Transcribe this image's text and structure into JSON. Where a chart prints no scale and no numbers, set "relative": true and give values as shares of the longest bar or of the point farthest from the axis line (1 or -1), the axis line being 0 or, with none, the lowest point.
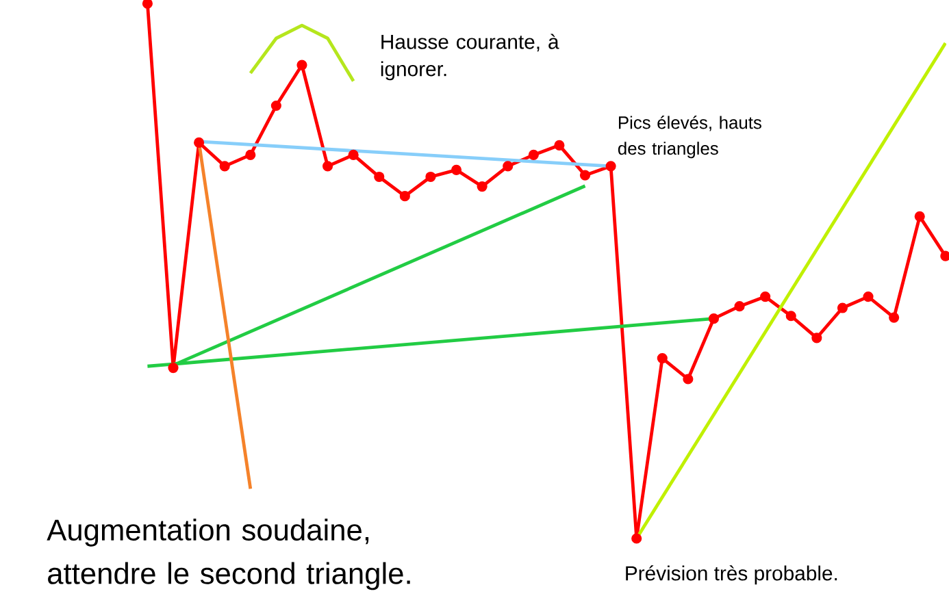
{
  "chart_data": {
    "type": "line",
    "relative": true,
    "categories": [
      null,
      null,
      null,
      null,
      null,
      null,
      null,
      null,
      null,
      null,
      null,
      null,
      null,
      null,
      null,
      null,
      null,
      null,
      null,
      null,
      null,
      null,
      null,
      null,
      null,
      null,
      null,
      null,
      null,
      null,
      null,
      null
    ],
    "series": [
      {
        "color": "#ff0000",
        "marker": "circle",
        "values": [
          1.0,
          0.319,
          0.74,
          0.696,
          0.717,
          0.809,
          0.885,
          0.696,
          0.717,
          0.676,
          0.64,
          0.676,
          0.689,
          0.658,
          0.696,
          0.717,
          0.735,
          0.679,
          0.696,
          0.0,
          0.337,
          0.298,
          0.411,
          0.434,
          0.452,
          0.416,
          0.375,
          0.431,
          0.452,
          0.413,
          0.602,
          0.528
        ]
      },
      {
        "color": "#b5e61d",
        "values": [
          null,
          null,
          null,
          null,
          0.87,
          0.935,
          0.959,
          0.935,
          0.855,
          null,
          null,
          null,
          null,
          null,
          null,
          null,
          null,
          null,
          null,
          null,
          null,
          null,
          null,
          null,
          null,
          null,
          null,
          null,
          null,
          null,
          null,
          null
        ]
      },
      {
        "color": "#87cefa",
        "values": [
          null,
          null,
          0.742,
          null,
          null,
          null,
          null,
          null,
          null,
          null,
          null,
          null,
          null,
          null,
          null,
          null,
          null,
          null,
          0.696,
          null,
          null,
          null,
          null,
          null,
          null,
          null,
          null,
          null,
          null,
          null,
          null,
          null
        ]
      },
      {
        "color": "#22cc44",
        "values": [
          null,
          0.324,
          null,
          null,
          null,
          null,
          null,
          null,
          null,
          null,
          null,
          null,
          null,
          null,
          null,
          null,
          null,
          0.659,
          null,
          null,
          null,
          null,
          null,
          null,
          null,
          null,
          null,
          null,
          null,
          null,
          null,
          null
        ]
      },
      {
        "color": "#22cc44",
        "values": [
          0.322,
          null,
          null,
          null,
          null,
          null,
          null,
          null,
          null,
          null,
          null,
          null,
          null,
          null,
          null,
          null,
          null,
          null,
          null,
          null,
          null,
          null,
          0.411,
          null,
          null,
          null,
          null,
          null,
          null,
          null,
          null,
          null
        ]
      },
      {
        "color": "#f5822a",
        "values": [
          null,
          null,
          0.74,
          null,
          0.093,
          null,
          null,
          null,
          null,
          null,
          null,
          null,
          null,
          null,
          null,
          null,
          null,
          null,
          null,
          null,
          null,
          null,
          null,
          null,
          null,
          null,
          null,
          null,
          null,
          null,
          null,
          null
        ]
      },
      {
        "color": "#c0f000",
        "values": [
          null,
          null,
          null,
          null,
          null,
          null,
          null,
          null,
          null,
          null,
          null,
          null,
          null,
          null,
          null,
          null,
          null,
          null,
          null,
          0.0,
          null,
          null,
          null,
          null,
          null,
          null,
          null,
          null,
          null,
          null,
          null,
          0.926
        ]
      }
    ],
    "annotations": [
      "Hausse courante, à ignorer.",
      "Pics élevés, hauts des triangles",
      "Augmentation soudaine, attendre le second triangle.",
      "Prévision très probable."
    ]
  }
}
